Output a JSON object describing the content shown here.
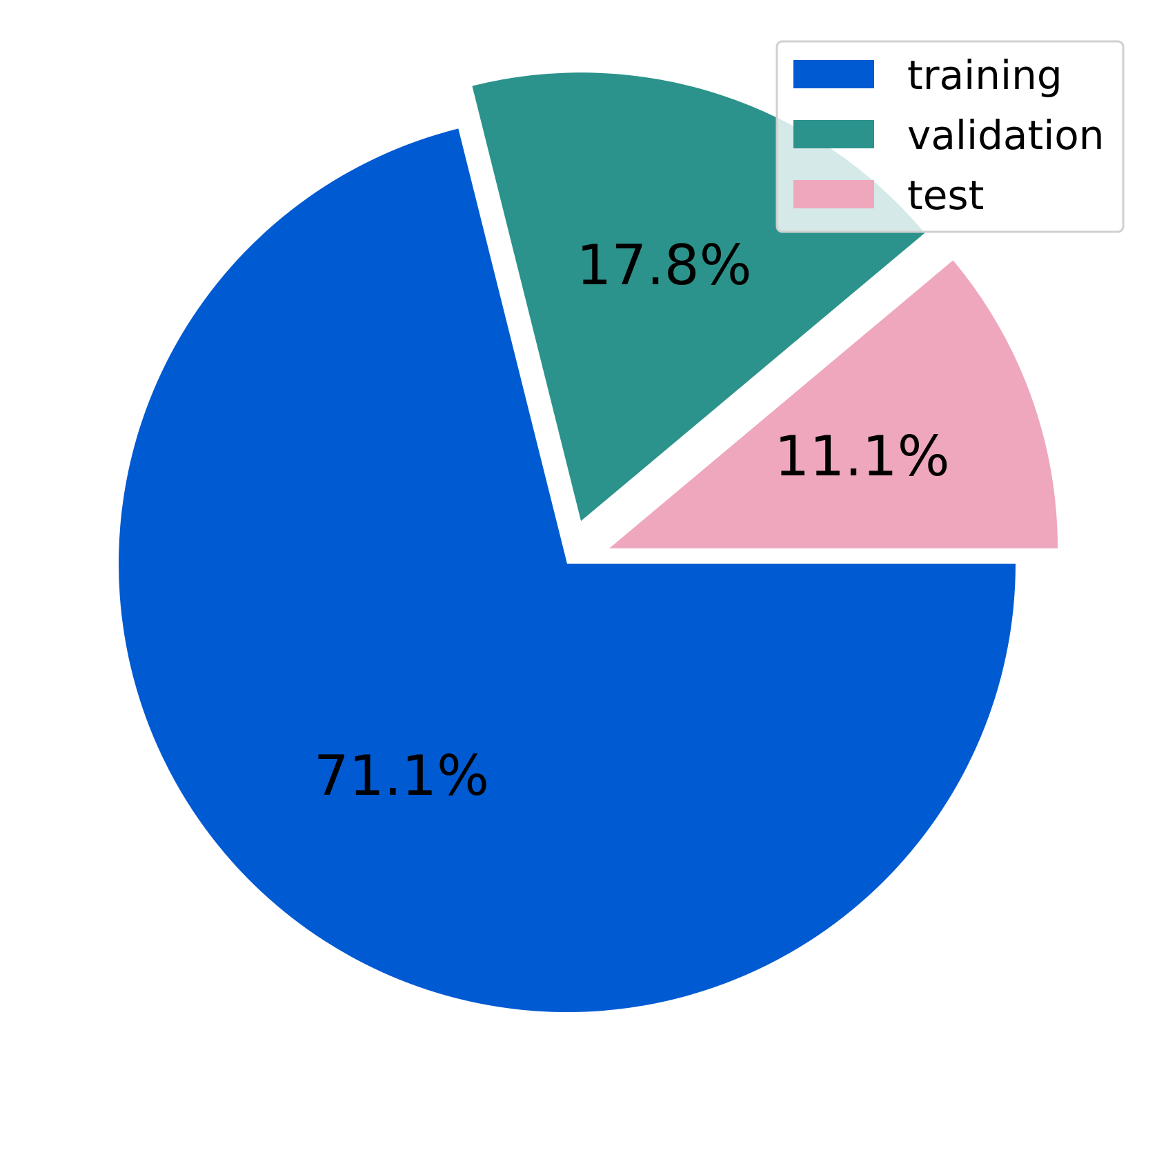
{
  "chart_data": {
    "type": "pie",
    "title": "",
    "start_angle_deg": 0,
    "direction": "clockwise",
    "exploded_labels": [
      "validation",
      "test"
    ],
    "slices": [
      {
        "label": "training",
        "value": 71.1,
        "pct_label": "71.1%",
        "color": "#005ad2"
      },
      {
        "label": "validation",
        "value": 17.8,
        "pct_label": "17.8%",
        "color": "#2b938b"
      },
      {
        "label": "test",
        "value": 11.1,
        "pct_label": "11.1%",
        "color": "#eea7bd"
      }
    ],
    "legend": {
      "position": "top-right",
      "entries": [
        "training",
        "validation",
        "test"
      ]
    }
  }
}
